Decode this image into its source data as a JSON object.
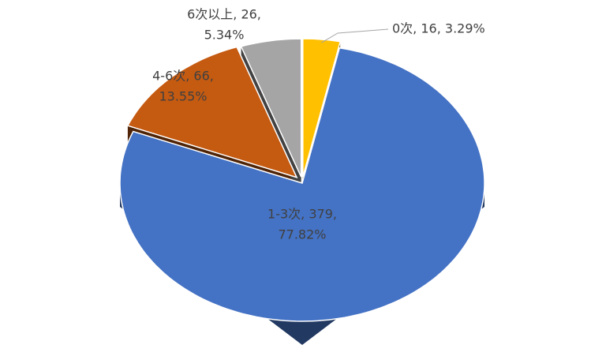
{
  "chart_data": {
    "type": "pie",
    "categories": [
      "0次",
      "1-3次",
      "4-6次",
      "6次以上"
    ],
    "values": [
      16,
      379,
      66,
      26
    ],
    "value_labels": [
      [
        "0次, 16, 3.29%"
      ],
      [
        "1-3次, 379,",
        "77.82%"
      ],
      [
        "4-6次, 66,",
        "13.55%"
      ],
      [
        "6次以上, 26,",
        "5.34%"
      ]
    ],
    "colors": [
      "#ffc000",
      "#4472c4",
      "#c55a11",
      "#a5a5a5"
    ]
  }
}
